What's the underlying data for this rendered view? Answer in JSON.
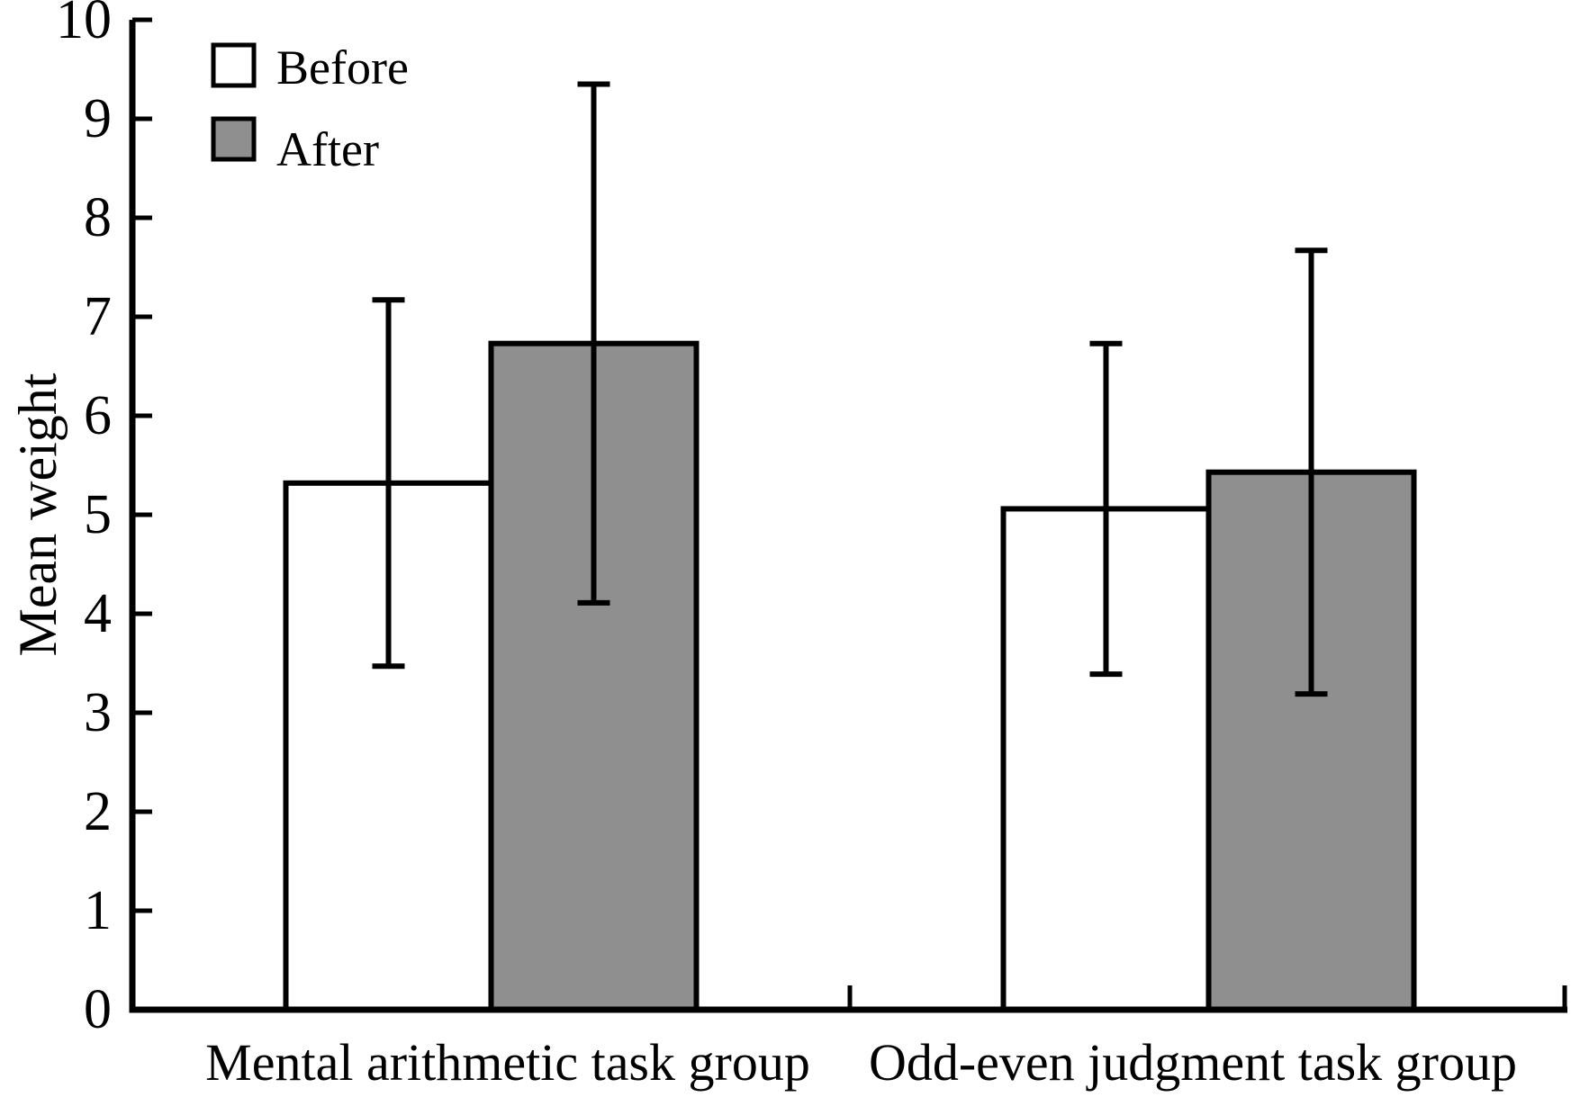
{
  "chart_data": {
    "type": "bar",
    "title": "",
    "xlabel": "",
    "ylabel": "Mean weight",
    "ylim": [
      0,
      10
    ],
    "ytick_step": 1,
    "yticks": [
      "0",
      "1",
      "2",
      "3",
      "4",
      "5",
      "6",
      "7",
      "8",
      "9",
      "10"
    ],
    "grid": false,
    "legend_position": "top-left",
    "error_bars": "symmetric, with caps",
    "categories": [
      "Mental arithmetic task group",
      "Odd-even judgment task group"
    ],
    "series": [
      {
        "name": "Before",
        "fill": "#ffffff",
        "values": [
          5.32,
          5.06
        ],
        "errors": [
          1.85,
          1.67
        ]
      },
      {
        "name": "After",
        "fill": "#8f8f8f",
        "values": [
          6.73,
          5.43
        ],
        "errors": [
          2.62,
          2.24
        ]
      }
    ],
    "colors": {
      "axis": "#000000",
      "bar_border": "#000000",
      "error_bar": "#000000",
      "background": "#ffffff"
    }
  }
}
